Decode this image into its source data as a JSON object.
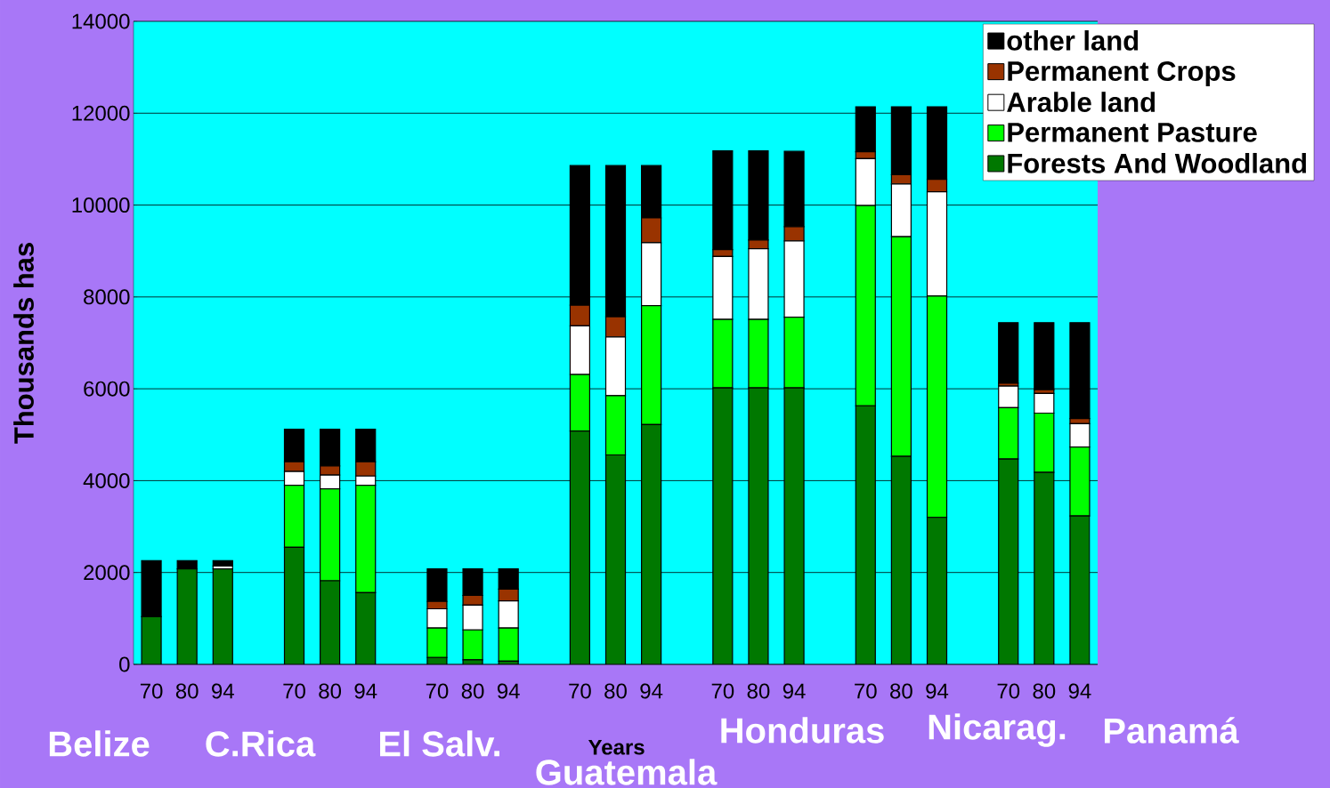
{
  "chart_data": {
    "type": "bar",
    "stacked": true,
    "xlabel": "Years",
    "ylabel": "Thousands has",
    "categories": [
      "70",
      "80",
      "94",
      null,
      "70",
      "80",
      "94",
      null,
      "70",
      "80",
      "94",
      null,
      "70",
      "80",
      "94",
      null,
      "70",
      "80",
      "94",
      null,
      "70",
      "80",
      "94",
      null,
      "70",
      "80",
      "94"
    ],
    "series": [
      {
        "name": "Forests And Woodland",
        "color": "#007800",
        "values": [
          1040,
          2080,
          2080,
          null,
          2550,
          1820,
          1560,
          null,
          150,
          100,
          70,
          null,
          5080,
          4560,
          5220,
          null,
          6020,
          6020,
          6020,
          null,
          5630,
          4530,
          3200,
          null,
          4470,
          4180,
          3230
        ]
      },
      {
        "name": "Permanent Pasture",
        "color": "#00ff00",
        "values": [
          0,
          0,
          0,
          null,
          1350,
          2000,
          2340,
          null,
          640,
          650,
          720,
          null,
          1230,
          1290,
          2590,
          null,
          1490,
          1490,
          1540,
          null,
          4360,
          4780,
          4820,
          null,
          1120,
          1290,
          1500
        ]
      },
      {
        "name": "Arable land",
        "color": "#ffffff",
        "values": [
          0,
          0,
          60,
          null,
          300,
          300,
          200,
          null,
          420,
          540,
          590,
          null,
          1060,
          1280,
          1370,
          null,
          1370,
          1540,
          1660,
          null,
          1020,
          1150,
          2270,
          null,
          470,
          430,
          510
        ]
      },
      {
        "name": "Permanent Crops",
        "color": "#993300",
        "values": [
          0,
          0,
          0,
          null,
          210,
          200,
          310,
          null,
          160,
          210,
          260,
          null,
          450,
          440,
          540,
          null,
          150,
          190,
          310,
          null,
          150,
          200,
          270,
          null,
          60,
          80,
          110
        ]
      },
      {
        "name": "other land",
        "color": "#000000",
        "values": [
          1220,
          180,
          120,
          null,
          710,
          800,
          710,
          null,
          710,
          580,
          440,
          null,
          3040,
          3290,
          1140,
          null,
          2150,
          1940,
          1640,
          null,
          980,
          1480,
          1580,
          null,
          1320,
          1460,
          2090
        ]
      }
    ],
    "ylim": [
      0,
      14000
    ],
    "yticks": [
      0,
      2000,
      4000,
      6000,
      8000,
      10000,
      12000,
      14000
    ],
    "grid": "y",
    "legend": "top right",
    "annotations": [
      "Belize",
      "C.Rica",
      "El Salv.",
      "Guatemala",
      "Honduras",
      "Nicarag.",
      "Panamá"
    ]
  }
}
